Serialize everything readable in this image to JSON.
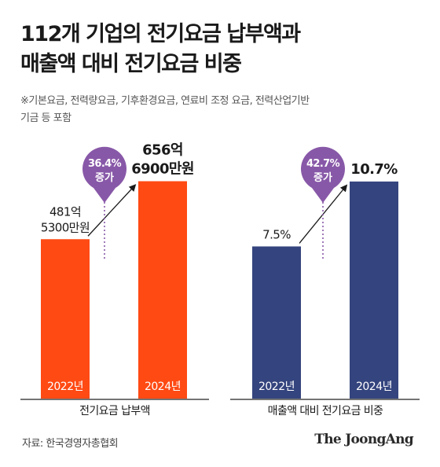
{
  "title": {
    "line1": "112개 기업의 전기요금 납부액과",
    "line2": "매출액 대비 전기요금 비중"
  },
  "note": {
    "line1": "※기본요금, 전력량요금, 기후환경요금, 연료비 조정 요금, 전력산업기반",
    "line2": "기금 등 포함"
  },
  "source": "자료: 한국경영자총협회",
  "logo": "The JoongAng",
  "colors": {
    "orange": "#ff4a14",
    "navy": "#34447e",
    "purple": "#8858a8",
    "text": "#1a1a1a"
  },
  "chart_data": [
    {
      "type": "bar",
      "xlabel": "전기요금 납부액",
      "categories": [
        "2022년",
        "2024년"
      ],
      "values": [
        481.53,
        656.69
      ],
      "units": "억 원",
      "data_labels": [
        [
          "481억",
          "5300만원"
        ],
        [
          "656억",
          "6900만원"
        ]
      ],
      "change_label": [
        "36.4%",
        "증가"
      ],
      "ylim": [
        0,
        760
      ],
      "color": "#ff4a14"
    },
    {
      "type": "bar",
      "xlabel": "매출액 대비 전기요금 비중",
      "categories": [
        "2022년",
        "2024년"
      ],
      "values": [
        7.5,
        10.7
      ],
      "units": "%",
      "data_labels": [
        [
          "7.5%"
        ],
        [
          "10.7%"
        ]
      ],
      "change_label": [
        "42.7%",
        "증가"
      ],
      "ylim": [
        0,
        12.4
      ],
      "color": "#34447e"
    }
  ]
}
